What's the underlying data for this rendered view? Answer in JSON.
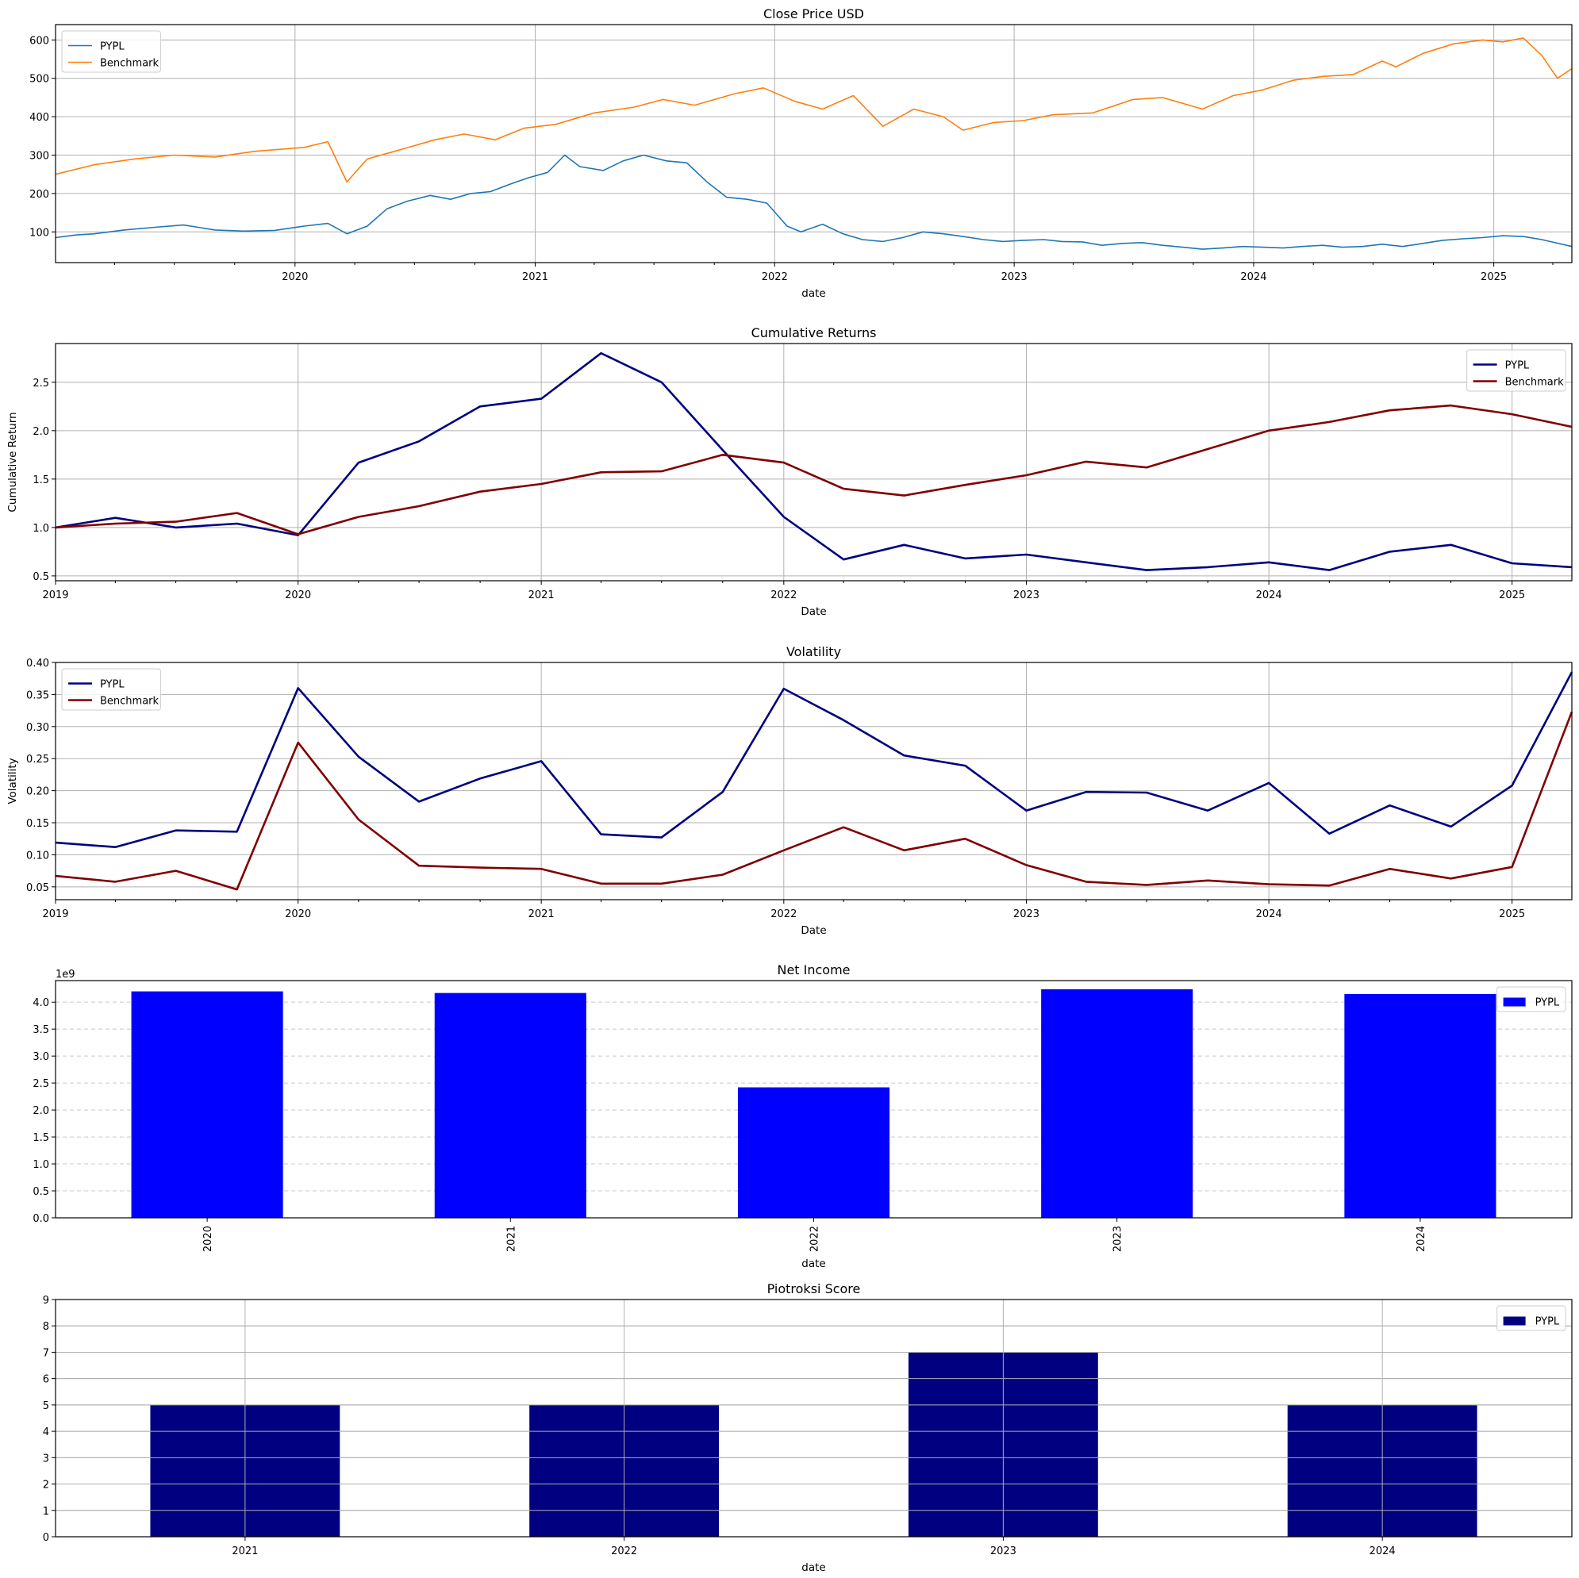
{
  "chart_data": [
    {
      "id": "close",
      "type": "line",
      "title": "Close Price USD",
      "xlabel": "date",
      "ylabel": "",
      "ylim": [
        20,
        640
      ],
      "yticks": [
        100,
        200,
        300,
        400,
        500,
        600
      ],
      "ytick_labels": [
        "100",
        "200",
        "300",
        "400",
        "500",
        "600"
      ],
      "xlim": [
        "2019-01-01",
        "2025-04-30"
      ],
      "xticks": [
        "2020-01-01",
        "2021-01-01",
        "2022-01-01",
        "2023-01-01",
        "2024-01-01",
        "2025-01-01"
      ],
      "xtick_labels": [
        "2020",
        "2021",
        "2022",
        "2023",
        "2024",
        "2025"
      ],
      "minor_xticks": true,
      "grid": "both",
      "legend": "upper left",
      "line_width": "thin",
      "series": [
        {
          "name": "PYPL",
          "color": "#1f77b4",
          "x": [
            "2019-01-01",
            "2019-02-01",
            "2019-03-01",
            "2019-04-15",
            "2019-06-01",
            "2019-07-15",
            "2019-09-01",
            "2019-10-15",
            "2019-12-01",
            "2020-01-15",
            "2020-02-20",
            "2020-03-20",
            "2020-04-20",
            "2020-05-20",
            "2020-06-20",
            "2020-07-25",
            "2020-08-25",
            "2020-09-25",
            "2020-10-25",
            "2020-11-25",
            "2020-12-20",
            "2021-01-20",
            "2021-02-15",
            "2021-03-10",
            "2021-04-15",
            "2021-05-15",
            "2021-06-15",
            "2021-07-20",
            "2021-08-20",
            "2021-09-20",
            "2021-10-20",
            "2021-11-20",
            "2021-12-20",
            "2022-01-20",
            "2022-02-10",
            "2022-03-15",
            "2022-04-15",
            "2022-05-15",
            "2022-06-15",
            "2022-07-15",
            "2022-08-15",
            "2022-09-15",
            "2022-10-15",
            "2022-11-15",
            "2022-12-15",
            "2023-01-15",
            "2023-02-15",
            "2023-03-15",
            "2023-04-15",
            "2023-05-15",
            "2023-06-15",
            "2023-07-15",
            "2023-08-15",
            "2023-09-15",
            "2023-10-15",
            "2023-11-15",
            "2023-12-15",
            "2024-01-15",
            "2024-02-15",
            "2024-03-15",
            "2024-04-15",
            "2024-05-15",
            "2024-06-15",
            "2024-07-15",
            "2024-08-15",
            "2024-09-15",
            "2024-10-15",
            "2024-11-15",
            "2024-12-15",
            "2025-01-15",
            "2025-02-15",
            "2025-03-15",
            "2025-04-30"
          ],
          "y": [
            85,
            92,
            95,
            105,
            112,
            118,
            105,
            102,
            104,
            115,
            122,
            95,
            115,
            160,
            180,
            195,
            185,
            200,
            205,
            225,
            240,
            255,
            300,
            270,
            260,
            285,
            300,
            285,
            280,
            230,
            190,
            185,
            175,
            115,
            100,
            120,
            95,
            80,
            75,
            85,
            100,
            95,
            88,
            80,
            75,
            78,
            80,
            75,
            74,
            65,
            70,
            72,
            65,
            60,
            55,
            58,
            62,
            60,
            58,
            62,
            65,
            60,
            62,
            68,
            62,
            70,
            78,
            82,
            85,
            90,
            88,
            80,
            62
          ]
        },
        {
          "name": "Benchmark",
          "color": "#ff7f0e",
          "x": [
            "2019-01-01",
            "2019-03-01",
            "2019-05-01",
            "2019-07-01",
            "2019-09-01",
            "2019-11-01",
            "2020-01-15",
            "2020-02-20",
            "2020-03-20",
            "2020-04-20",
            "2020-06-01",
            "2020-08-01",
            "2020-09-15",
            "2020-11-01",
            "2020-12-15",
            "2021-02-01",
            "2021-04-01",
            "2021-06-01",
            "2021-07-15",
            "2021-09-01",
            "2021-11-01",
            "2021-12-15",
            "2022-02-01",
            "2022-03-15",
            "2022-05-01",
            "2022-06-15",
            "2022-08-01",
            "2022-09-15",
            "2022-10-15",
            "2022-12-01",
            "2023-01-15",
            "2023-03-01",
            "2023-05-01",
            "2023-07-01",
            "2023-08-15",
            "2023-10-15",
            "2023-12-01",
            "2024-01-15",
            "2024-03-01",
            "2024-04-15",
            "2024-06-01",
            "2024-07-15",
            "2024-08-05",
            "2024-09-15",
            "2024-11-01",
            "2024-12-15",
            "2025-01-15",
            "2025-02-15",
            "2025-03-15",
            "2025-04-08",
            "2025-04-30"
          ],
          "y": [
            250,
            275,
            290,
            300,
            295,
            310,
            320,
            335,
            230,
            290,
            310,
            340,
            355,
            340,
            370,
            380,
            410,
            425,
            445,
            430,
            460,
            475,
            440,
            420,
            455,
            375,
            420,
            400,
            365,
            385,
            390,
            405,
            410,
            445,
            450,
            420,
            455,
            470,
            495,
            505,
            510,
            545,
            530,
            565,
            590,
            600,
            595,
            605,
            560,
            500,
            525
          ]
        }
      ]
    },
    {
      "id": "cumret",
      "type": "line",
      "title": "Cumulative Returns",
      "xlabel": "Date",
      "ylabel": "Cumulative Return",
      "ylim": [
        0.45,
        2.9
      ],
      "yticks": [
        0.5,
        1.0,
        1.5,
        2.0,
        2.5
      ],
      "ytick_labels": [
        "0.5",
        "1.0",
        "1.5",
        "2.0",
        "2.5"
      ],
      "xlim": [
        "2019-01-01",
        "2025-04-01"
      ],
      "xticks": [
        "2019-01-01",
        "2020-01-01",
        "2021-01-01",
        "2022-01-01",
        "2023-01-01",
        "2024-01-01",
        "2025-01-01"
      ],
      "xtick_labels": [
        "2019",
        "2020",
        "2021",
        "2022",
        "2023",
        "2024",
        "2025"
      ],
      "minor_xticks": true,
      "grid": "both",
      "legend": "upper right",
      "line_width": "thick",
      "series": [
        {
          "name": "PYPL",
          "color": "#000080",
          "x": [
            "2019-01-01",
            "2019-04-01",
            "2019-07-01",
            "2019-10-01",
            "2020-01-01",
            "2020-04-01",
            "2020-07-01",
            "2020-10-01",
            "2021-01-01",
            "2021-04-01",
            "2021-07-01",
            "2021-10-01",
            "2022-01-01",
            "2022-04-01",
            "2022-07-01",
            "2022-10-01",
            "2023-01-01",
            "2023-04-01",
            "2023-07-01",
            "2023-10-01",
            "2024-01-01",
            "2024-04-01",
            "2024-07-01",
            "2024-10-01",
            "2025-01-01",
            "2025-04-01"
          ],
          "y": [
            1.0,
            1.1,
            1.0,
            1.04,
            0.92,
            1.67,
            1.89,
            2.25,
            2.33,
            2.8,
            2.5,
            1.8,
            1.11,
            0.67,
            0.82,
            0.68,
            0.72,
            0.64,
            0.56,
            0.59,
            0.64,
            0.56,
            0.75,
            0.82,
            0.63,
            0.59
          ]
        },
        {
          "name": "Benchmark",
          "color": "#800000",
          "x": [
            "2019-01-01",
            "2019-04-01",
            "2019-07-01",
            "2019-10-01",
            "2020-01-01",
            "2020-04-01",
            "2020-07-01",
            "2020-10-01",
            "2021-01-01",
            "2021-04-01",
            "2021-07-01",
            "2021-10-01",
            "2022-01-01",
            "2022-04-01",
            "2022-07-01",
            "2022-10-01",
            "2023-01-01",
            "2023-04-01",
            "2023-07-01",
            "2023-10-01",
            "2024-01-01",
            "2024-04-01",
            "2024-07-01",
            "2024-10-01",
            "2025-01-01",
            "2025-04-01"
          ],
          "y": [
            1.0,
            1.04,
            1.06,
            1.15,
            0.93,
            1.11,
            1.22,
            1.37,
            1.45,
            1.57,
            1.58,
            1.75,
            1.67,
            1.4,
            1.33,
            1.44,
            1.54,
            1.68,
            1.62,
            1.81,
            2.0,
            2.09,
            2.21,
            2.26,
            2.17,
            2.04
          ]
        }
      ]
    },
    {
      "id": "vol",
      "type": "line",
      "title": "Volatility",
      "xlabel": "Date",
      "ylabel": "Volatility",
      "ylim": [
        0.03,
        0.4
      ],
      "yticks": [
        0.05,
        0.1,
        0.15,
        0.2,
        0.25,
        0.3,
        0.35,
        0.4
      ],
      "ytick_labels": [
        "0.05",
        "0.10",
        "0.15",
        "0.20",
        "0.25",
        "0.30",
        "0.35",
        "0.40"
      ],
      "xlim": [
        "2019-01-01",
        "2025-04-01"
      ],
      "xticks": [
        "2019-01-01",
        "2020-01-01",
        "2021-01-01",
        "2022-01-01",
        "2023-01-01",
        "2024-01-01",
        "2025-01-01"
      ],
      "xtick_labels": [
        "2019",
        "2020",
        "2021",
        "2022",
        "2023",
        "2024",
        "2025"
      ],
      "minor_xticks": true,
      "grid": "both",
      "legend": "upper left",
      "line_width": "thick",
      "series": [
        {
          "name": "PYPL",
          "color": "#000080",
          "x": [
            "2019-01-01",
            "2019-04-01",
            "2019-07-01",
            "2019-10-01",
            "2020-01-01",
            "2020-04-01",
            "2020-07-01",
            "2020-10-01",
            "2021-01-01",
            "2021-04-01",
            "2021-07-01",
            "2021-10-01",
            "2022-01-01",
            "2022-04-01",
            "2022-07-01",
            "2022-10-01",
            "2023-01-01",
            "2023-04-01",
            "2023-07-01",
            "2023-10-01",
            "2024-01-01",
            "2024-04-01",
            "2024-07-01",
            "2024-10-01",
            "2025-01-01",
            "2025-04-01"
          ],
          "y": [
            0.119,
            0.112,
            0.138,
            0.136,
            0.36,
            0.253,
            0.183,
            0.219,
            0.246,
            0.132,
            0.127,
            0.198,
            0.359,
            0.31,
            0.255,
            0.239,
            0.169,
            0.198,
            0.197,
            0.169,
            0.212,
            0.133,
            0.177,
            0.144,
            0.208,
            0.385
          ]
        },
        {
          "name": "Benchmark",
          "color": "#800000",
          "x": [
            "2019-01-01",
            "2019-04-01",
            "2019-07-01",
            "2019-10-01",
            "2020-01-01",
            "2020-04-01",
            "2020-07-01",
            "2020-10-01",
            "2021-01-01",
            "2021-04-01",
            "2021-07-01",
            "2021-10-01",
            "2022-01-01",
            "2022-04-01",
            "2022-07-01",
            "2022-10-01",
            "2023-01-01",
            "2023-04-01",
            "2023-07-01",
            "2023-10-01",
            "2024-01-01",
            "2024-04-01",
            "2024-07-01",
            "2024-10-01",
            "2025-01-01",
            "2025-04-01"
          ],
          "y": [
            0.067,
            0.058,
            0.075,
            0.046,
            0.275,
            0.155,
            0.083,
            0.08,
            0.078,
            0.055,
            0.055,
            0.069,
            0.107,
            0.143,
            0.107,
            0.125,
            0.084,
            0.058,
            0.053,
            0.06,
            0.054,
            0.052,
            0.078,
            0.063,
            0.081,
            0.323
          ]
        }
      ]
    },
    {
      "id": "netinc",
      "type": "bar",
      "title": "Net Income",
      "xlabel": "date",
      "ylabel": "",
      "offset_label": "1e9",
      "ylim": [
        0,
        4.4
      ],
      "yticks": [
        0,
        0.5,
        1.0,
        1.5,
        2.0,
        2.5,
        3.0,
        3.5,
        4.0
      ],
      "ytick_labels": [
        "0.0",
        "0.5",
        "1.0",
        "1.5",
        "2.0",
        "2.5",
        "3.0",
        "3.5",
        "4.0"
      ],
      "categories": [
        "2020",
        "2021",
        "2022",
        "2023",
        "2024"
      ],
      "rotate_xticks": true,
      "grid": "y-dashed",
      "legend": "upper right",
      "series": [
        {
          "name": "PYPL",
          "color": "#0000ff",
          "values": [
            4.2,
            4.17,
            2.42,
            4.24,
            4.15
          ]
        }
      ]
    },
    {
      "id": "piotroski",
      "type": "bar",
      "title": "Piotroksi Score",
      "xlabel": "date",
      "ylabel": "",
      "ylim": [
        0,
        9
      ],
      "yticks": [
        0,
        1,
        2,
        3,
        4,
        5,
        6,
        7,
        8,
        9
      ],
      "ytick_labels": [
        "0",
        "1",
        "2",
        "3",
        "4",
        "5",
        "6",
        "7",
        "8",
        "9"
      ],
      "categories": [
        "2021",
        "2022",
        "2023",
        "2024"
      ],
      "rotate_xticks": false,
      "grid": "both",
      "legend": "upper right",
      "series": [
        {
          "name": "PYPL",
          "color": "#000080",
          "values": [
            5,
            5,
            7,
            5
          ]
        }
      ]
    }
  ]
}
